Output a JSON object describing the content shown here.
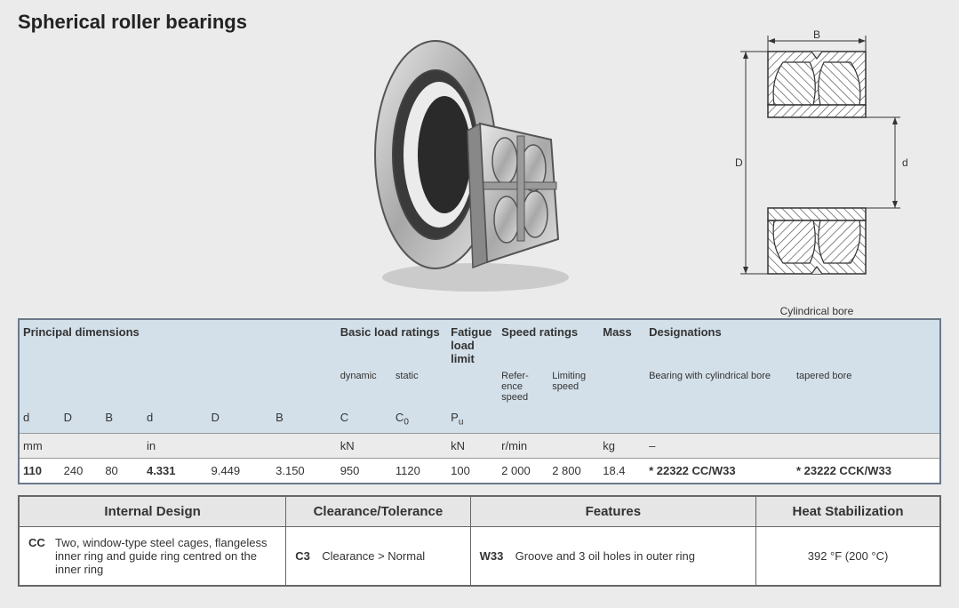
{
  "title": "Spherical roller bearings",
  "schematic_caption": "Cylindrical bore",
  "schematic_labels": {
    "B": "B",
    "D": "D",
    "d": "d"
  },
  "colors": {
    "page_bg": "#ebebeb",
    "header_bg": "#d3e0ea",
    "table_border": "#6a7a8a",
    "data_bg": "#ffffff",
    "feature_header_bg": "#e6e6e6"
  },
  "tbl1": {
    "group_headers": {
      "principal": "Principal dimensions",
      "basic_load": "Basic load ratings",
      "fatigue": "Fatigue load limit",
      "speed": "Speed ratings",
      "mass": "Mass",
      "designations": "Designations"
    },
    "sub_labels": {
      "dynamic": "dynamic",
      "static": "static",
      "reference": "Refer-ence speed",
      "limiting": "Limiting speed",
      "bearing_cyl": "Bearing with cylindrical bore",
      "tapered": "tapered bore"
    },
    "col_symbols": [
      "d",
      "D",
      "B",
      "d",
      "D",
      "B",
      "C",
      "C",
      "P",
      "",
      "",
      "",
      "",
      ""
    ],
    "col_symbol_subs": [
      "",
      "",
      "",
      "",
      "",
      "",
      "",
      "0",
      "u",
      "",
      "",
      "",
      "",
      ""
    ],
    "units": [
      "mm",
      "",
      "",
      "in",
      "",
      "",
      "kN",
      "",
      "kN",
      "r/min",
      "",
      "kg",
      "–",
      ""
    ],
    "data_row": [
      "110",
      "240",
      "80",
      "4.331",
      "9.449",
      "3.150",
      "950",
      "1120",
      "100",
      "2 000",
      "2 800",
      "18.4",
      "* 22322 CC/W33",
      "* 23222 CCK/W33"
    ],
    "data_bold_idx": [
      0,
      3,
      12,
      13
    ],
    "col_widths_pct": [
      4.5,
      4.5,
      4.5,
      7,
      7,
      7,
      6,
      6,
      5.5,
      5.5,
      5.5,
      5,
      16,
      16
    ]
  },
  "tbl2": {
    "headers": [
      "Internal Design",
      "Clearance/Tolerance",
      "Features",
      "Heat Stabilization"
    ],
    "col_widths_pct": [
      29,
      20,
      31,
      20
    ],
    "rows": [
      {
        "internal_code": "CC",
        "internal_desc": "Two, window-type steel cages, flangeless inner ring and guide ring centred on the inner ring",
        "clearance_code": "C3",
        "clearance_desc": "Clearance > Normal",
        "features_code": "W33",
        "features_desc": "Groove and 3 oil holes in outer ring",
        "heat": "392 °F (200 °C)"
      }
    ]
  }
}
